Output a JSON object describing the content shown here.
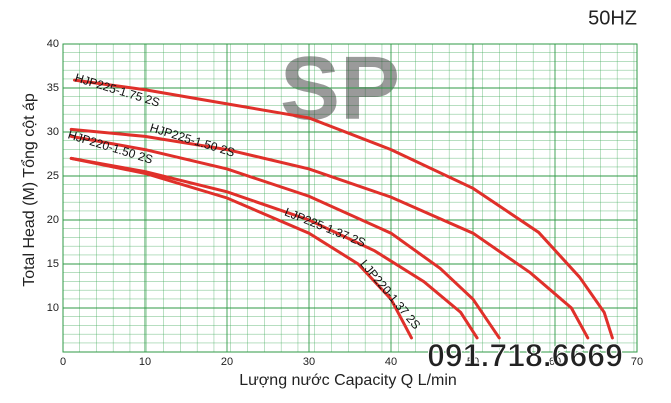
{
  "chart_data": {
    "type": "line",
    "title": "50HZ",
    "x_label": "Lượng nước Capacity Q L/min",
    "y_label": "Total Head (M) Tổng cột áp",
    "xlim": [
      0,
      70
    ],
    "xticks": [
      0,
      10,
      20,
      30,
      40,
      50,
      60,
      70
    ],
    "ylim": [
      5,
      40
    ],
    "yticks": [
      10,
      15,
      20,
      25,
      30,
      35,
      40
    ],
    "grid": true,
    "series": [
      {
        "name": "HJP225-1.75 2S",
        "color": "#e0302a",
        "x": [
          1.4,
          10,
          20,
          30,
          40,
          50,
          58,
          63,
          66,
          67
        ],
        "values": [
          35.9,
          34.8,
          33.2,
          31.6,
          28,
          23.6,
          18.6,
          13.5,
          9.5,
          6.6
        ]
      },
      {
        "name": "HJP225-1.50 2S",
        "color": "#e0302a",
        "x": [
          1,
          10,
          20,
          30,
          40,
          50,
          57,
          62,
          64
        ],
        "values": [
          30.3,
          29.5,
          28,
          25.8,
          22.6,
          18.5,
          14,
          10,
          6.6
        ]
      },
      {
        "name": "HJP220-1.50 2S",
        "color": "#e0302a",
        "x": [
          1,
          10,
          20,
          30,
          40,
          46,
          50,
          53.2
        ],
        "values": [
          29.5,
          28,
          25.8,
          22.7,
          18.5,
          14.5,
          11,
          6.6
        ]
      },
      {
        "name": "LJP225-1.37 2S",
        "color": "#e0302a",
        "x": [
          1,
          10,
          20,
          30,
          38,
          44,
          48.5,
          50.5
        ],
        "values": [
          27,
          25.5,
          23.2,
          20,
          16.5,
          13,
          9.5,
          6.6
        ]
      },
      {
        "name": "LJP220-1.37 2S",
        "color": "#e0302a",
        "x": [
          1,
          10,
          20,
          30,
          36,
          40,
          42.5
        ],
        "values": [
          27,
          25.3,
          22.5,
          18.5,
          15,
          11,
          6.6
        ]
      }
    ]
  },
  "watermark": "SP",
  "phone": "091.718.6669"
}
